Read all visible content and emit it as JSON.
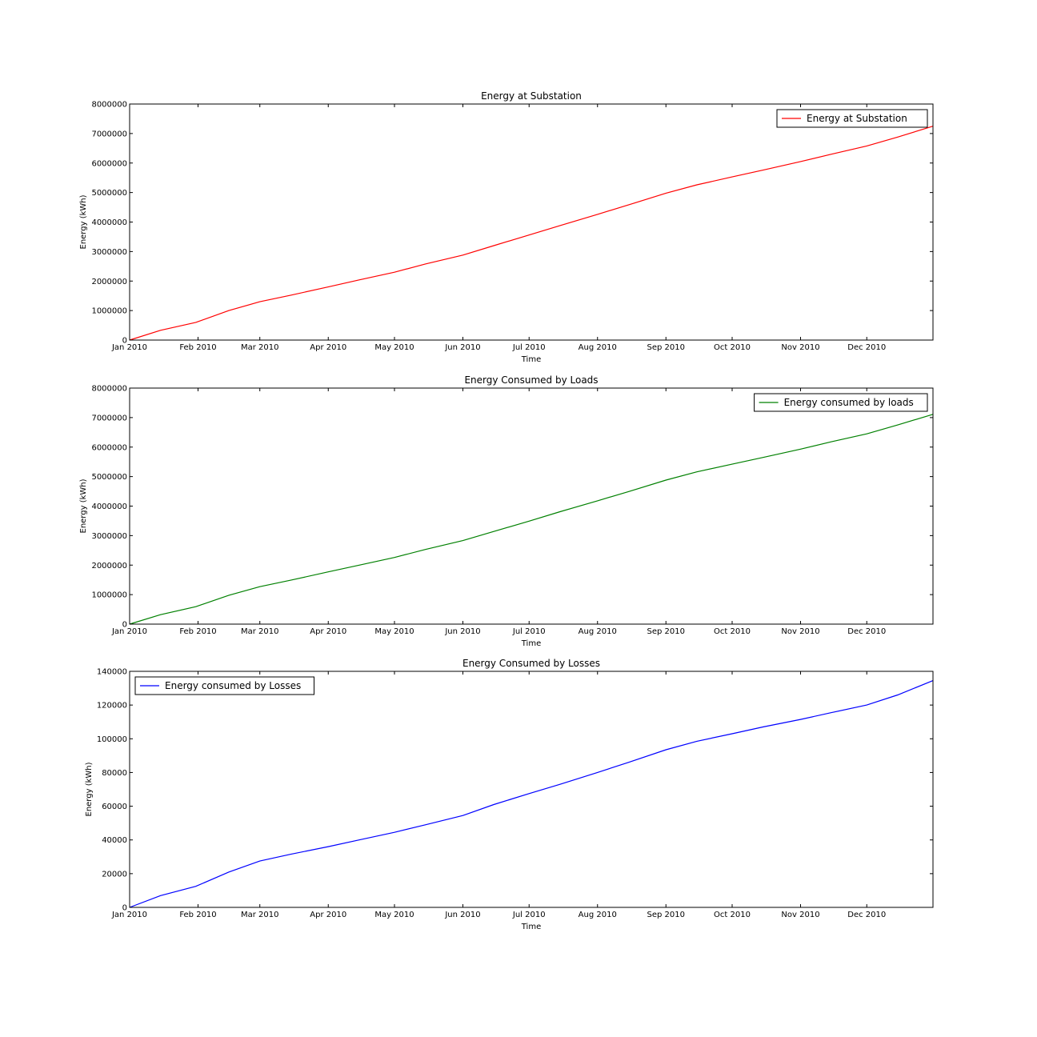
{
  "chart_data": [
    {
      "type": "line",
      "title": "Energy at Substation",
      "xlabel": "Time",
      "ylabel": "Energy (kWh)",
      "x_ticks": [
        "Jan 2010",
        "Feb 2010",
        "Mar 2010",
        "Apr 2010",
        "May 2010",
        "Jun 2010",
        "Jul 2010",
        "Aug 2010",
        "Sep 2010",
        "Oct 2010",
        "Nov 2010",
        "Dec 2010"
      ],
      "xlim": [
        "2010-01-01",
        "2010-12-31"
      ],
      "ylim": [
        0,
        8000000
      ],
      "y_ticks": [
        "0",
        "1000000",
        "2000000",
        "3000000",
        "4000000",
        "5000000",
        "6000000",
        "7000000",
        "8000000"
      ],
      "legend_position": "upper right",
      "grid": false,
      "series": [
        {
          "name": "Energy at Substation",
          "color": "#ff0000",
          "x": [
            "2010-01-01",
            "2010-01-15",
            "2010-01-31",
            "2010-02-15",
            "2010-03-01",
            "2010-03-15",
            "2010-04-01",
            "2010-04-15",
            "2010-05-01",
            "2010-05-15",
            "2010-06-01",
            "2010-06-15",
            "2010-07-01",
            "2010-07-15",
            "2010-08-01",
            "2010-08-15",
            "2010-09-01",
            "2010-09-15",
            "2010-10-01",
            "2010-10-15",
            "2010-11-01",
            "2010-11-15",
            "2010-12-01",
            "2010-12-15",
            "2010-12-31"
          ],
          "values": [
            0,
            330000,
            600000,
            1000000,
            1300000,
            1520000,
            1800000,
            2040000,
            2300000,
            2580000,
            2880000,
            3200000,
            3560000,
            3880000,
            4260000,
            4580000,
            4980000,
            5260000,
            5530000,
            5760000,
            6050000,
            6300000,
            6580000,
            6880000,
            7250000
          ]
        }
      ]
    },
    {
      "type": "line",
      "title": "Energy Consumed by Loads",
      "xlabel": "Time",
      "ylabel": "Energy (kWh)",
      "x_ticks": [
        "Jan 2010",
        "Feb 2010",
        "Mar 2010",
        "Apr 2010",
        "May 2010",
        "Jun 2010",
        "Jul 2010",
        "Aug 2010",
        "Sep 2010",
        "Oct 2010",
        "Nov 2010",
        "Dec 2010"
      ],
      "xlim": [
        "2010-01-01",
        "2010-12-31"
      ],
      "ylim": [
        0,
        8000000
      ],
      "y_ticks": [
        "0",
        "1000000",
        "2000000",
        "3000000",
        "4000000",
        "5000000",
        "6000000",
        "7000000",
        "8000000"
      ],
      "legend_position": "upper right",
      "grid": false,
      "series": [
        {
          "name": "Energy consumed by loads",
          "color": "#008000",
          "x": [
            "2010-01-01",
            "2010-01-15",
            "2010-01-31",
            "2010-02-15",
            "2010-03-01",
            "2010-03-15",
            "2010-04-01",
            "2010-04-15",
            "2010-05-01",
            "2010-05-15",
            "2010-06-01",
            "2010-06-15",
            "2010-07-01",
            "2010-07-15",
            "2010-08-01",
            "2010-08-15",
            "2010-09-01",
            "2010-09-15",
            "2010-10-01",
            "2010-10-15",
            "2010-11-01",
            "2010-11-15",
            "2010-12-01",
            "2010-12-15",
            "2010-12-31"
          ],
          "values": [
            0,
            320000,
            590000,
            980000,
            1270000,
            1490000,
            1770000,
            2000000,
            2260000,
            2530000,
            2830000,
            3140000,
            3490000,
            3810000,
            4180000,
            4490000,
            4880000,
            5160000,
            5420000,
            5650000,
            5930000,
            6180000,
            6450000,
            6750000,
            7110000
          ]
        }
      ]
    },
    {
      "type": "line",
      "title": "Energy Consumed by Losses",
      "xlabel": "Time",
      "ylabel": "Energy (kWh)",
      "x_ticks": [
        "Jan 2010",
        "Feb 2010",
        "Mar 2010",
        "Apr 2010",
        "May 2010",
        "Jun 2010",
        "Jul 2010",
        "Aug 2010",
        "Sep 2010",
        "Oct 2010",
        "Nov 2010",
        "Dec 2010"
      ],
      "xlim": [
        "2010-01-01",
        "2010-12-31"
      ],
      "ylim": [
        0,
        140000
      ],
      "y_ticks": [
        "0",
        "20000",
        "40000",
        "60000",
        "80000",
        "100000",
        "120000",
        "140000"
      ],
      "legend_position": "upper left",
      "grid": false,
      "series": [
        {
          "name": "Energy consumed by Losses",
          "color": "#0000ff",
          "x": [
            "2010-01-01",
            "2010-01-15",
            "2010-01-31",
            "2010-02-15",
            "2010-03-01",
            "2010-03-15",
            "2010-04-01",
            "2010-04-15",
            "2010-05-01",
            "2010-05-15",
            "2010-06-01",
            "2010-06-15",
            "2010-07-01",
            "2010-07-15",
            "2010-08-01",
            "2010-08-15",
            "2010-09-01",
            "2010-09-15",
            "2010-10-01",
            "2010-10-15",
            "2010-11-01",
            "2010-11-15",
            "2010-12-01",
            "2010-12-15",
            "2010-12-31"
          ],
          "values": [
            0,
            7000,
            12500,
            21000,
            27500,
            31500,
            36000,
            40000,
            44500,
            49000,
            54500,
            61000,
            67500,
            73000,
            80000,
            86000,
            93500,
            98500,
            103000,
            107000,
            111500,
            115500,
            120000,
            126000,
            134500
          ]
        }
      ]
    }
  ]
}
